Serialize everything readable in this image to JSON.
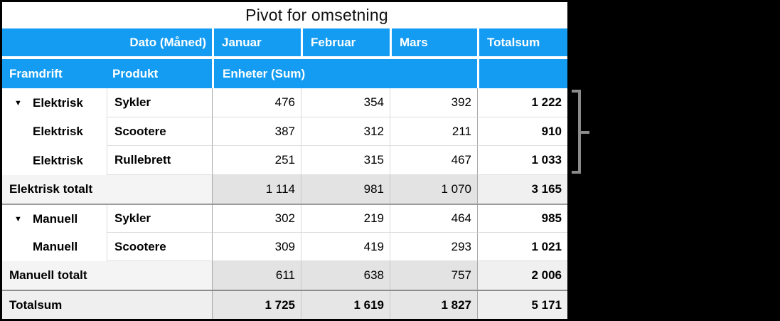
{
  "title": "Pivot for omsetning",
  "colors": {
    "header_blue": "#149CF2",
    "background": "#000000",
    "subtotal_value_bg": "#E3E3E3",
    "subtotal_label_bg": "#F4F4F4",
    "grand_total_bg": "#EFEFEF",
    "bracket_gray": "#8B8B8B"
  },
  "icons": {
    "disclosure_down": "▼"
  },
  "header_row1": {
    "dato_label": "Dato (Måned)",
    "months": [
      "Januar",
      "Februar",
      "Mars"
    ],
    "totalsum_label": "Totalsum"
  },
  "header_row2": {
    "framdrift_label": "Framdrift",
    "produkt_label": "Produkt",
    "enheter_label": "Enheter (Sum)"
  },
  "rows": [
    {
      "framdrift": "Elektrisk",
      "produkt": "Sykler",
      "januar": "476",
      "februar": "354",
      "mars": "392",
      "totalsum": "1 222"
    },
    {
      "framdrift": "Elektrisk",
      "produkt": "Scootere",
      "januar": "387",
      "februar": "312",
      "mars": "211",
      "totalsum": "910"
    },
    {
      "framdrift": "Elektrisk",
      "produkt": "Rullebrett",
      "januar": "251",
      "februar": "315",
      "mars": "467",
      "totalsum": "1 033"
    },
    {
      "label": "Elektrisk totalt",
      "januar": "1 114",
      "februar": "981",
      "mars": "1 070",
      "totalsum": "3 165"
    },
    {
      "framdrift": "Manuell",
      "produkt": "Sykler",
      "januar": "302",
      "februar": "219",
      "mars": "464",
      "totalsum": "985"
    },
    {
      "framdrift": "Manuell",
      "produkt": "Scootere",
      "januar": "309",
      "februar": "419",
      "mars": "293",
      "totalsum": "1 021"
    },
    {
      "label": "Manuell totalt",
      "januar": "611",
      "februar": "638",
      "mars": "757",
      "totalsum": "2 006"
    },
    {
      "label": "Totalsum",
      "januar": "1 725",
      "februar": "1 619",
      "mars": "1 827",
      "totalsum": "5 171"
    }
  ]
}
